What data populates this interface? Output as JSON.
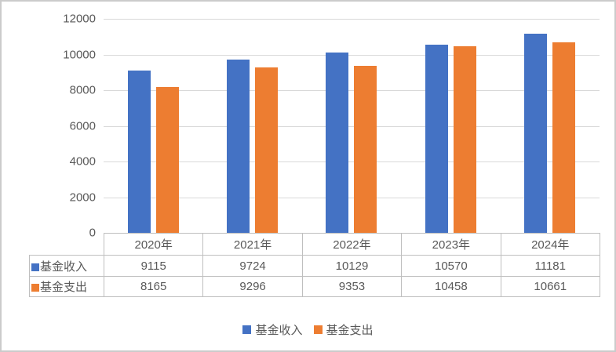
{
  "chart_data": {
    "type": "bar",
    "title": "",
    "categories": [
      "2020年",
      "2021年",
      "2022年",
      "2023年",
      "2024年"
    ],
    "series": [
      {
        "name": "基金收入",
        "color": "#4472C4",
        "values": [
          9115,
          9724,
          10129,
          10570,
          11181
        ]
      },
      {
        "name": "基金支出",
        "color": "#ED7D31",
        "values": [
          8165,
          9296,
          9353,
          10458,
          10661
        ]
      }
    ],
    "xlabel": "",
    "ylabel": "",
    "ylim": [
      0,
      12000
    ],
    "ytick_step": 2000,
    "ytick_labels": [
      "0",
      "2000",
      "4000",
      "6000",
      "8000",
      "10000",
      "12000"
    ],
    "grid": true,
    "legend_position": "bottom",
    "has_data_table": true
  },
  "legend": {
    "items": [
      {
        "label": "基金收入",
        "color": "#4472C4"
      },
      {
        "label": "基金支出",
        "color": "#ED7D31"
      }
    ]
  },
  "colors": {
    "series_income": "#4472C4",
    "series_expense": "#ED7D31",
    "gridline": "#D9D9D9",
    "table_border": "#BFBFBF",
    "text": "#595959",
    "frame_border": "#CBCBCB",
    "background": "#FFFFFF"
  }
}
